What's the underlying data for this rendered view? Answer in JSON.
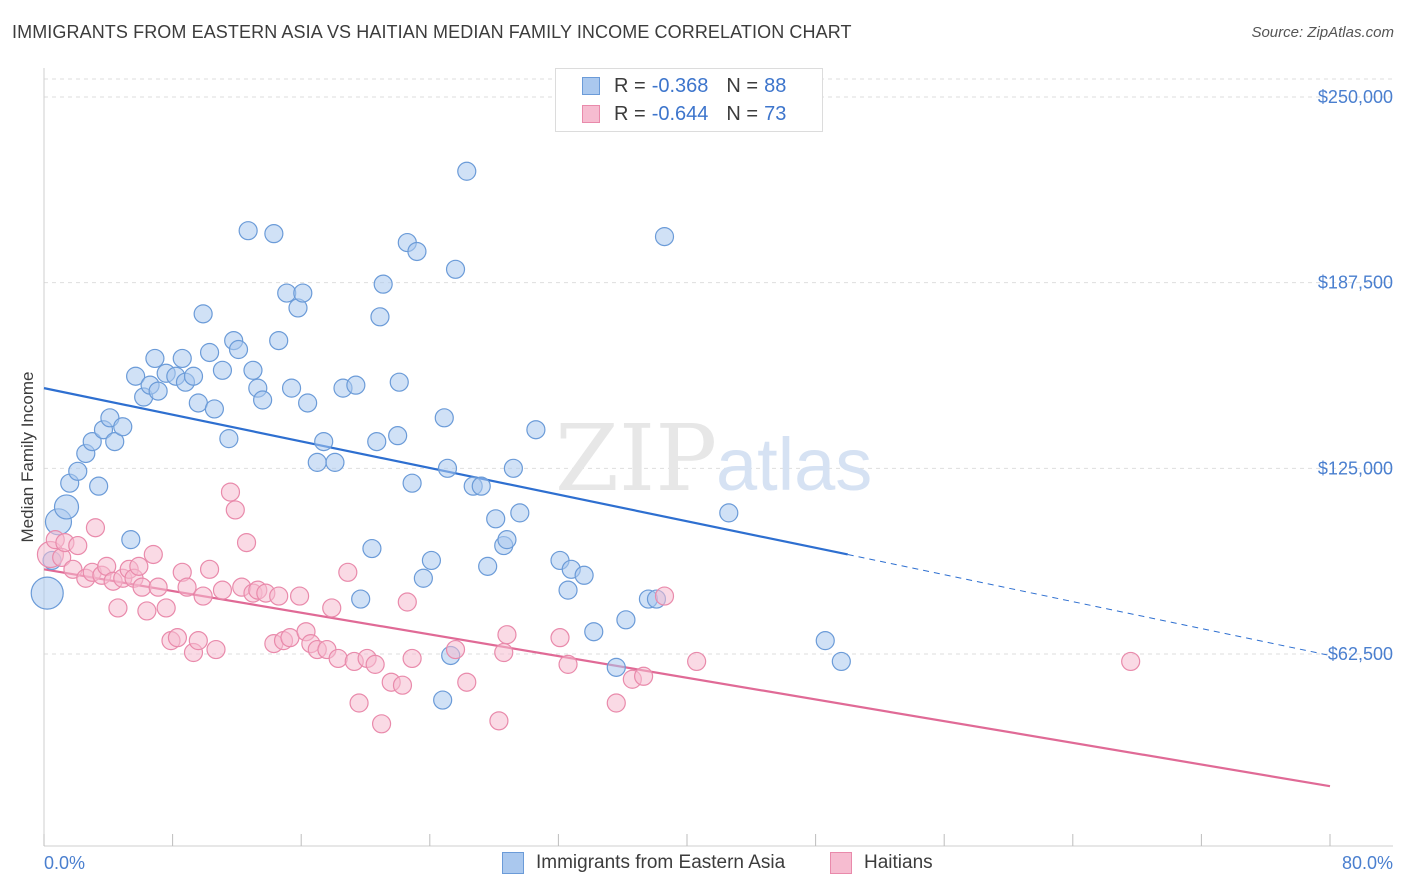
{
  "title": "IMMIGRANTS FROM EASTERN ASIA VS HAITIAN MEDIAN FAMILY INCOME CORRELATION CHART",
  "source": "Source: ZipAtlas.com",
  "watermark": {
    "zip": "ZIP",
    "atlas": "atlas"
  },
  "legend": {
    "rows": [
      {
        "r_label": "R =",
        "r_value": "-0.368",
        "n_label": "N =",
        "n_value": "88"
      },
      {
        "r_label": "R =",
        "r_value": "-0.644",
        "n_label": "N =",
        "n_value": "73"
      }
    ]
  },
  "bottom_legend": [
    "Immigrants from Eastern Asia",
    "Haitians"
  ],
  "colors": {
    "blue_fill": "#aac8ee",
    "blue_stroke": "#6b9bd8",
    "blue_line": "#2e6fd0",
    "pink_fill": "#f6bcd0",
    "pink_stroke": "#e98aab",
    "pink_line": "#e06a96",
    "grid": "#dedede",
    "tick_text": "#4a7fcf"
  },
  "chart_data": {
    "type": "scatter",
    "title": "IMMIGRANTS FROM EASTERN ASIA VS HAITIAN MEDIAN FAMILY INCOME CORRELATION CHART",
    "xlabel": "",
    "ylabel": "Median Family Income",
    "xlim": [
      0,
      80
    ],
    "ylim": [
      0,
      262000
    ],
    "x_tick_labels": [
      "0.0%",
      "80.0%"
    ],
    "y_ticks": [
      62500,
      125000,
      187500,
      250000
    ],
    "y_tick_labels": [
      "$62,500",
      "$125,000",
      "$187,500",
      "$250,000"
    ],
    "grid": true,
    "legend_position": "top-center",
    "series": [
      {
        "name": "Immigrants from Eastern Asia",
        "trend": {
          "x0": 0,
          "y0": 152000,
          "x1": 50,
          "y1": 96000,
          "dashed_to_x": 80,
          "dashed_to_y": 62000
        },
        "points": [
          [
            0.2,
            83000
          ],
          [
            0.9,
            107000
          ],
          [
            1.4,
            112000
          ],
          [
            1.6,
            120000
          ],
          [
            2.1,
            124000
          ],
          [
            2.6,
            130000
          ],
          [
            3.0,
            134000
          ],
          [
            3.4,
            119000
          ],
          [
            3.7,
            138000
          ],
          [
            4.1,
            142000
          ],
          [
            4.4,
            134000
          ],
          [
            4.9,
            139000
          ],
          [
            5.4,
            101000
          ],
          [
            5.7,
            156000
          ],
          [
            6.2,
            149000
          ],
          [
            6.6,
            153000
          ],
          [
            6.9,
            162000
          ],
          [
            7.1,
            151000
          ],
          [
            7.6,
            157000
          ],
          [
            8.2,
            156000
          ],
          [
            8.6,
            162000
          ],
          [
            8.8,
            154000
          ],
          [
            9.3,
            156000
          ],
          [
            9.6,
            147000
          ],
          [
            9.9,
            177000
          ],
          [
            10.3,
            164000
          ],
          [
            10.6,
            145000
          ],
          [
            11.1,
            158000
          ],
          [
            11.5,
            135000
          ],
          [
            11.8,
            168000
          ],
          [
            12.1,
            165000
          ],
          [
            12.7,
            205000
          ],
          [
            13.0,
            158000
          ],
          [
            13.3,
            152000
          ],
          [
            13.6,
            148000
          ],
          [
            14.3,
            204000
          ],
          [
            14.6,
            168000
          ],
          [
            15.1,
            184000
          ],
          [
            15.4,
            152000
          ],
          [
            15.8,
            179000
          ],
          [
            16.1,
            184000
          ],
          [
            16.4,
            147000
          ],
          [
            17.0,
            127000
          ],
          [
            17.4,
            134000
          ],
          [
            18.1,
            127000
          ],
          [
            18.6,
            152000
          ],
          [
            19.4,
            153000
          ],
          [
            19.7,
            81000
          ],
          [
            20.4,
            98000
          ],
          [
            20.9,
            176000
          ],
          [
            21.1,
            187000
          ],
          [
            20.7,
            134000
          ],
          [
            22.0,
            136000
          ],
          [
            22.1,
            154000
          ],
          [
            22.6,
            201000
          ],
          [
            22.9,
            120000
          ],
          [
            23.2,
            198000
          ],
          [
            23.6,
            88000
          ],
          [
            24.1,
            94000
          ],
          [
            24.9,
            142000
          ],
          [
            25.1,
            125000
          ],
          [
            25.6,
            192000
          ],
          [
            25.3,
            62000
          ],
          [
            24.8,
            47000
          ],
          [
            26.3,
            225000
          ],
          [
            26.7,
            119000
          ],
          [
            27.2,
            119000
          ],
          [
            27.6,
            92000
          ],
          [
            28.1,
            108000
          ],
          [
            28.6,
            99000
          ],
          [
            28.8,
            101000
          ],
          [
            29.2,
            125000
          ],
          [
            29.6,
            110000
          ],
          [
            30.6,
            138000
          ],
          [
            32.1,
            94000
          ],
          [
            32.6,
            84000
          ],
          [
            32.8,
            91000
          ],
          [
            33.6,
            89000
          ],
          [
            34.2,
            70000
          ],
          [
            35.6,
            58000
          ],
          [
            36.2,
            74000
          ],
          [
            37.6,
            81000
          ],
          [
            38.6,
            203000
          ],
          [
            38.1,
            81000
          ],
          [
            42.6,
            110000
          ],
          [
            48.6,
            67000
          ],
          [
            49.6,
            60000
          ],
          [
            0.5,
            94000
          ]
        ],
        "radii": {
          "0": 16,
          "1": 13,
          "2": 12,
          "88": 11
        }
      },
      {
        "name": "Haitians",
        "trend": {
          "x0": 0,
          "y0": 91000,
          "x1": 80,
          "y1": 18000
        },
        "points": [
          [
            0.4,
            96000
          ],
          [
            0.7,
            101000
          ],
          [
            1.1,
            95000
          ],
          [
            1.3,
            100000
          ],
          [
            1.8,
            91000
          ],
          [
            2.1,
            99000
          ],
          [
            2.6,
            88000
          ],
          [
            3.0,
            90000
          ],
          [
            3.2,
            105000
          ],
          [
            3.6,
            89000
          ],
          [
            3.9,
            92000
          ],
          [
            4.3,
            87000
          ],
          [
            4.6,
            78000
          ],
          [
            4.9,
            88000
          ],
          [
            5.3,
            91000
          ],
          [
            5.6,
            88000
          ],
          [
            5.9,
            92000
          ],
          [
            6.1,
            85000
          ],
          [
            6.4,
            77000
          ],
          [
            6.8,
            96000
          ],
          [
            7.1,
            85000
          ],
          [
            7.6,
            78000
          ],
          [
            7.9,
            67000
          ],
          [
            8.3,
            68000
          ],
          [
            8.6,
            90000
          ],
          [
            8.9,
            85000
          ],
          [
            9.3,
            63000
          ],
          [
            9.6,
            67000
          ],
          [
            9.9,
            82000
          ],
          [
            10.3,
            91000
          ],
          [
            10.7,
            64000
          ],
          [
            11.1,
            84000
          ],
          [
            11.6,
            117000
          ],
          [
            11.9,
            111000
          ],
          [
            12.3,
            85000
          ],
          [
            12.6,
            100000
          ],
          [
            13.0,
            83000
          ],
          [
            13.3,
            84000
          ],
          [
            13.8,
            83000
          ],
          [
            14.3,
            66000
          ],
          [
            14.6,
            82000
          ],
          [
            14.9,
            67000
          ],
          [
            15.3,
            68000
          ],
          [
            15.9,
            82000
          ],
          [
            16.3,
            70000
          ],
          [
            16.6,
            66000
          ],
          [
            17.0,
            64000
          ],
          [
            17.6,
            64000
          ],
          [
            17.9,
            78000
          ],
          [
            18.3,
            61000
          ],
          [
            18.9,
            90000
          ],
          [
            19.3,
            60000
          ],
          [
            19.6,
            46000
          ],
          [
            20.1,
            61000
          ],
          [
            20.6,
            59000
          ],
          [
            21.0,
            39000
          ],
          [
            21.6,
            53000
          ],
          [
            22.3,
            52000
          ],
          [
            22.6,
            80000
          ],
          [
            22.9,
            61000
          ],
          [
            25.6,
            64000
          ],
          [
            26.3,
            53000
          ],
          [
            28.6,
            63000
          ],
          [
            28.8,
            69000
          ],
          [
            28.3,
            40000
          ],
          [
            32.1,
            68000
          ],
          [
            32.6,
            59000
          ],
          [
            35.6,
            46000
          ],
          [
            36.6,
            54000
          ],
          [
            37.3,
            55000
          ],
          [
            38.6,
            82000
          ],
          [
            40.6,
            60000
          ],
          [
            67.6,
            60000
          ]
        ],
        "radii": {
          "0": 13,
          "default": 9
        }
      }
    ]
  }
}
